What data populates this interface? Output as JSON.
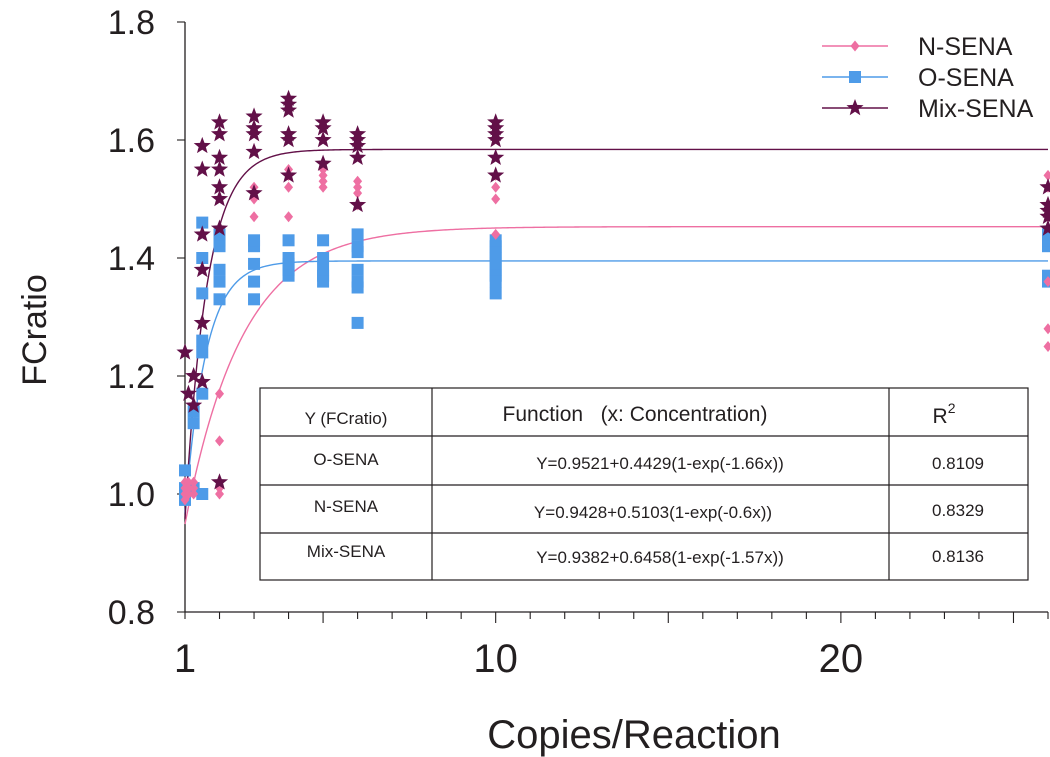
{
  "chart_data": {
    "type": "scatter",
    "xlabel": "Copies/Reaction",
    "ylabel": "FCratio",
    "xlim": [
      1,
      26
    ],
    "ylim": [
      0.8,
      1.8
    ],
    "x_ticks": [
      1,
      10,
      20
    ],
    "y_ticks": [
      "0.8",
      "1.0",
      "1.2",
      "1.4",
      "1.6",
      "1.8"
    ],
    "legend_position": "top-right",
    "series": [
      {
        "name": "N-SENA",
        "color": "#ee6fa2",
        "marker": "diamond",
        "fit": {
          "a": 0.9428,
          "b": 0.5103,
          "k": 0.6
        },
        "points": [
          [
            1,
            1.0
          ],
          [
            1,
            1.02
          ],
          [
            1,
            0.99
          ],
          [
            1,
            1.01
          ],
          [
            1.1,
            1.0
          ],
          [
            1.1,
            1.02
          ],
          [
            1.1,
            1.01
          ],
          [
            1.25,
            1.0
          ],
          [
            1.25,
            1.01
          ],
          [
            1.25,
            1.02
          ],
          [
            2,
            1.0
          ],
          [
            2,
            1.01
          ],
          [
            2,
            1.09
          ],
          [
            2,
            1.17
          ],
          [
            3,
            1.47
          ],
          [
            3,
            1.5
          ],
          [
            3,
            1.52
          ],
          [
            4,
            1.47
          ],
          [
            4,
            1.52
          ],
          [
            4,
            1.54
          ],
          [
            4,
            1.55
          ],
          [
            5,
            1.52
          ],
          [
            5,
            1.53
          ],
          [
            5,
            1.54
          ],
          [
            5,
            1.55
          ],
          [
            6,
            1.49
          ],
          [
            6,
            1.51
          ],
          [
            6,
            1.52
          ],
          [
            6,
            1.53
          ],
          [
            10,
            1.44
          ],
          [
            10,
            1.5
          ],
          [
            10,
            1.52
          ],
          [
            10,
            1.54
          ],
          [
            26,
            1.25
          ],
          [
            26,
            1.28
          ],
          [
            26,
            1.36
          ],
          [
            26,
            1.47
          ],
          [
            26,
            1.52
          ],
          [
            26,
            1.54
          ]
        ]
      },
      {
        "name": "O-SENA",
        "color": "#4e9be8",
        "marker": "square",
        "fit": {
          "a": 0.9521,
          "b": 0.4429,
          "k": 1.66
        },
        "points": [
          [
            1,
            1.0
          ],
          [
            1,
            1.04
          ],
          [
            1,
            1.01
          ],
          [
            1,
            0.99
          ],
          [
            1.25,
            1.12
          ],
          [
            1.25,
            1.14
          ],
          [
            1.25,
            1.01
          ],
          [
            1.5,
            1.0
          ],
          [
            1.5,
            1.17
          ],
          [
            1.5,
            1.24
          ],
          [
            1.5,
            1.26
          ],
          [
            1.5,
            1.34
          ],
          [
            1.5,
            1.4
          ],
          [
            1.5,
            1.46
          ],
          [
            2,
            1.33
          ],
          [
            2,
            1.36
          ],
          [
            2,
            1.38
          ],
          [
            2,
            1.42
          ],
          [
            2,
            1.43
          ],
          [
            2,
            1.44
          ],
          [
            3,
            1.33
          ],
          [
            3,
            1.36
          ],
          [
            3,
            1.39
          ],
          [
            3,
            1.42
          ],
          [
            3,
            1.43
          ],
          [
            4,
            1.37
          ],
          [
            4,
            1.38
          ],
          [
            4,
            1.39
          ],
          [
            4,
            1.4
          ],
          [
            4,
            1.43
          ],
          [
            5,
            1.36
          ],
          [
            5,
            1.37
          ],
          [
            5,
            1.38
          ],
          [
            5,
            1.4
          ],
          [
            5,
            1.43
          ],
          [
            6,
            1.29
          ],
          [
            6,
            1.35
          ],
          [
            6,
            1.36
          ],
          [
            6,
            1.38
          ],
          [
            6,
            1.41
          ],
          [
            6,
            1.42
          ],
          [
            6,
            1.44
          ],
          [
            10,
            1.34
          ],
          [
            10,
            1.36
          ],
          [
            10,
            1.37
          ],
          [
            10,
            1.38
          ],
          [
            10,
            1.39
          ],
          [
            10,
            1.4
          ],
          [
            10,
            1.41
          ],
          [
            10,
            1.42
          ],
          [
            10,
            1.43
          ],
          [
            26,
            1.36
          ],
          [
            26,
            1.37
          ],
          [
            26,
            1.42
          ],
          [
            26,
            1.43
          ],
          [
            26,
            1.44
          ]
        ]
      },
      {
        "name": "Mix-SENA",
        "color": "#621048",
        "marker": "star",
        "fit": {
          "a": 0.9382,
          "b": 0.6458,
          "k": 1.57
        },
        "points": [
          [
            1,
            1.24
          ],
          [
            1.1,
            1.17
          ],
          [
            1.25,
            1.15
          ],
          [
            1.25,
            1.2
          ],
          [
            1.5,
            1.19
          ],
          [
            1.5,
            1.29
          ],
          [
            1.5,
            1.38
          ],
          [
            1.5,
            1.44
          ],
          [
            1.5,
            1.55
          ],
          [
            1.5,
            1.59
          ],
          [
            2,
            1.02
          ],
          [
            2,
            1.45
          ],
          [
            2,
            1.5
          ],
          [
            2,
            1.52
          ],
          [
            2,
            1.55
          ],
          [
            2,
            1.57
          ],
          [
            2,
            1.61
          ],
          [
            2,
            1.63
          ],
          [
            3,
            1.51
          ],
          [
            3,
            1.58
          ],
          [
            3,
            1.61
          ],
          [
            3,
            1.62
          ],
          [
            3,
            1.64
          ],
          [
            4,
            1.54
          ],
          [
            4,
            1.6
          ],
          [
            4,
            1.61
          ],
          [
            4,
            1.65
          ],
          [
            4,
            1.66
          ],
          [
            4,
            1.67
          ],
          [
            5,
            1.56
          ],
          [
            5,
            1.6
          ],
          [
            5,
            1.62
          ],
          [
            5,
            1.63
          ],
          [
            6,
            1.49
          ],
          [
            6,
            1.57
          ],
          [
            6,
            1.59
          ],
          [
            6,
            1.6
          ],
          [
            6,
            1.61
          ],
          [
            10,
            1.54
          ],
          [
            10,
            1.57
          ],
          [
            10,
            1.6
          ],
          [
            10,
            1.61
          ],
          [
            10,
            1.62
          ],
          [
            10,
            1.63
          ],
          [
            26,
            1.45
          ],
          [
            26,
            1.47
          ],
          [
            26,
            1.48
          ],
          [
            26,
            1.49
          ],
          [
            26,
            1.52
          ]
        ]
      }
    ],
    "table": {
      "headers": [
        "Y (FCratio)",
        "Function   (x: Concentration)",
        "R",
        "2"
      ],
      "rows": [
        [
          "O-SENA",
          "Y=0.9521+0.4429(1-exp(-1.66x))",
          "0.8109"
        ],
        [
          "N-SENA",
          "Y=0.9428+0.5103(1-exp(-0.6x))",
          "0.8329"
        ],
        [
          "Mix-SENA",
          "Y=0.9382+0.6458(1-exp(-1.57x))",
          "0.8136"
        ]
      ]
    }
  }
}
